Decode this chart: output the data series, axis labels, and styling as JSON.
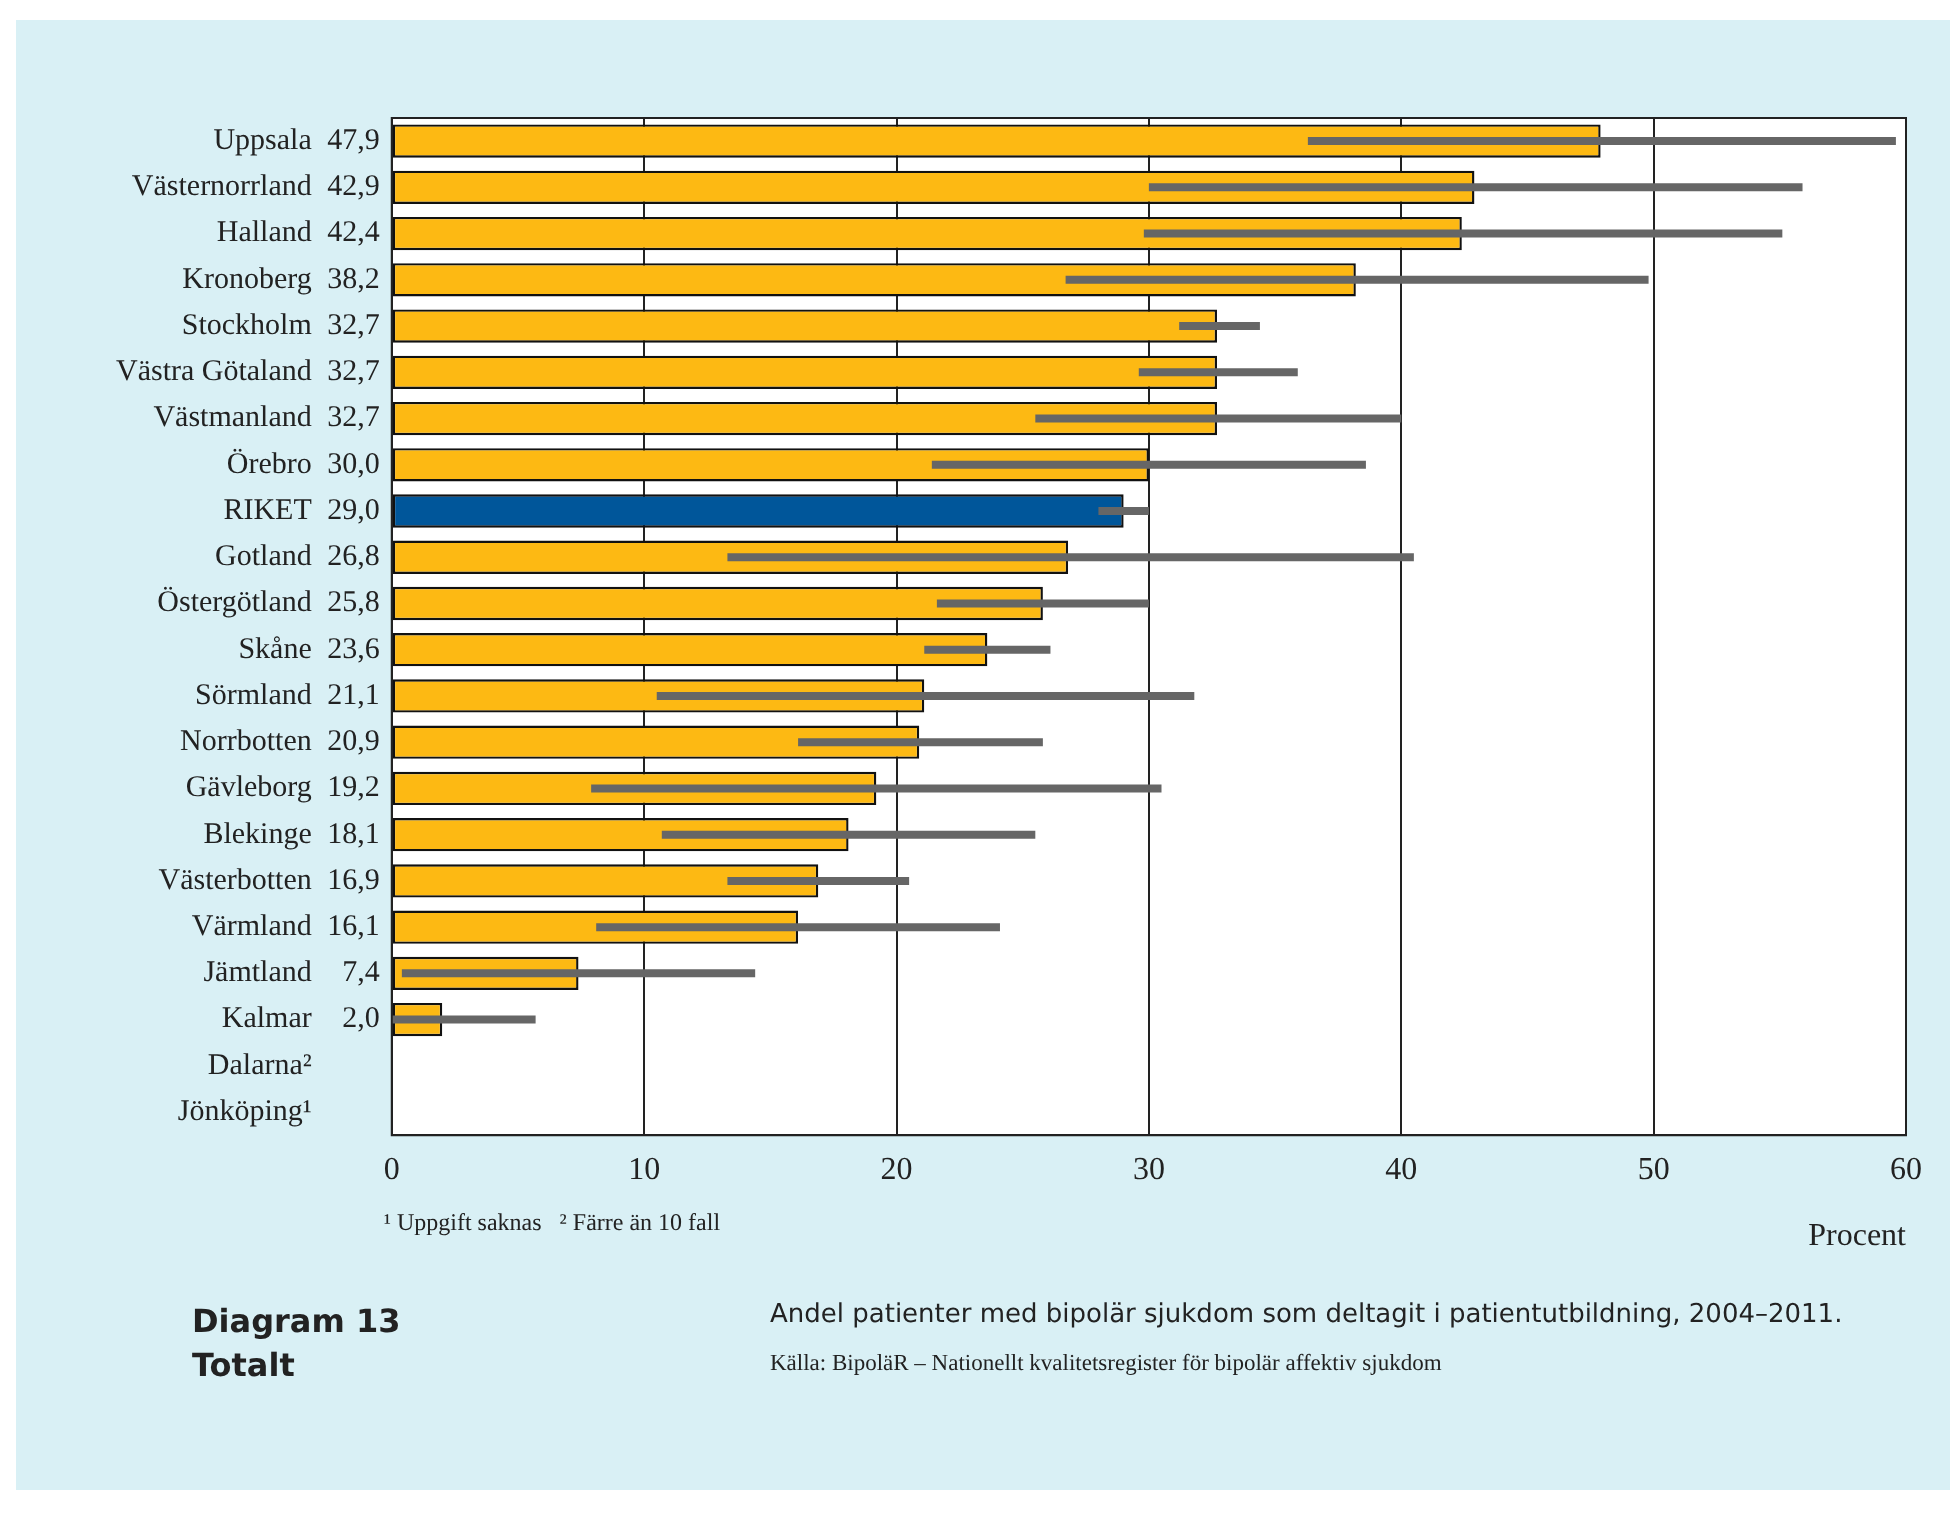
{
  "chart_data": {
    "type": "bar",
    "orientation": "horizontal",
    "title": "Andel patienter med bipolär sjukdom som deltagit i patientutbildning, 2004–2011.",
    "xlabel": "Procent",
    "annotations": [
      "¹ Uppgift saknas   ² Färre än 10 fall",
      "Diagram 13",
      "Totalt",
      "Källa: BipoläR – Nationellt kvalitetsregister för bipolär affektiv sjukdom"
    ],
    "categories": [
      "Uppsala",
      "Västernorrland",
      "Halland",
      "Kronoberg",
      "Stockholm",
      "Västra Götaland",
      "Västmanland",
      "Örebro",
      "RIKET",
      "Gotland",
      "Östergötland",
      "Skåne",
      "Sörmland",
      "Norrbotten",
      "Gävleborg",
      "Blekinge",
      "Västerbotten",
      "Värmland",
      "Jämtland",
      "Kalmar",
      "Dalarna²",
      "Jönköping¹"
    ],
    "values": [
      47.9,
      42.9,
      42.4,
      38.2,
      32.7,
      32.7,
      32.7,
      30.0,
      29.0,
      26.8,
      25.8,
      23.6,
      21.1,
      20.9,
      19.2,
      18.1,
      16.9,
      16.1,
      7.4,
      2.0,
      null,
      null
    ],
    "value_labels": [
      "47,9",
      "42,9",
      "42,4",
      "38,2",
      "32,7",
      "32,7",
      "32,7",
      "30,0",
      "29,0",
      "26,8",
      "25,8",
      "23,6",
      "21,1",
      "20,9",
      "19,2",
      "18,1",
      "16,9",
      "16,1",
      "7,4",
      "2,0",
      null,
      null
    ],
    "errors": [
      [
        36.3,
        59.6
      ],
      [
        30.0,
        55.9
      ],
      [
        29.8,
        55.1
      ],
      [
        26.7,
        49.8
      ],
      [
        31.2,
        34.4
      ],
      [
        29.6,
        35.9
      ],
      [
        25.5,
        40.0
      ],
      [
        21.4,
        38.6
      ],
      [
        28.0,
        30.0
      ],
      [
        13.3,
        40.5
      ],
      [
        21.6,
        30.0
      ],
      [
        21.1,
        26.1
      ],
      [
        10.5,
        31.8
      ],
      [
        16.1,
        25.8
      ],
      [
        7.9,
        30.5
      ],
      [
        10.7,
        25.5
      ],
      [
        13.3,
        20.5
      ],
      [
        8.1,
        24.1
      ],
      [
        0.4,
        14.4
      ],
      [
        0,
        5.7
      ],
      null,
      null
    ],
    "colors": [
      "#fdb913",
      "#fdb913",
      "#fdb913",
      "#fdb913",
      "#fdb913",
      "#fdb913",
      "#fdb913",
      "#fdb913",
      "#00569a",
      "#fdb913",
      "#fdb913",
      "#fdb913",
      "#fdb913",
      "#fdb913",
      "#fdb913",
      "#fdb913",
      "#fdb913",
      "#fdb913",
      "#fdb913",
      "#fdb913",
      "#fdb913",
      "#fdb913"
    ],
    "xlim": [
      0,
      60
    ],
    "xticks": [
      0,
      10,
      20,
      30,
      40,
      50,
      60
    ],
    "grid": "x",
    "legend": false
  }
}
